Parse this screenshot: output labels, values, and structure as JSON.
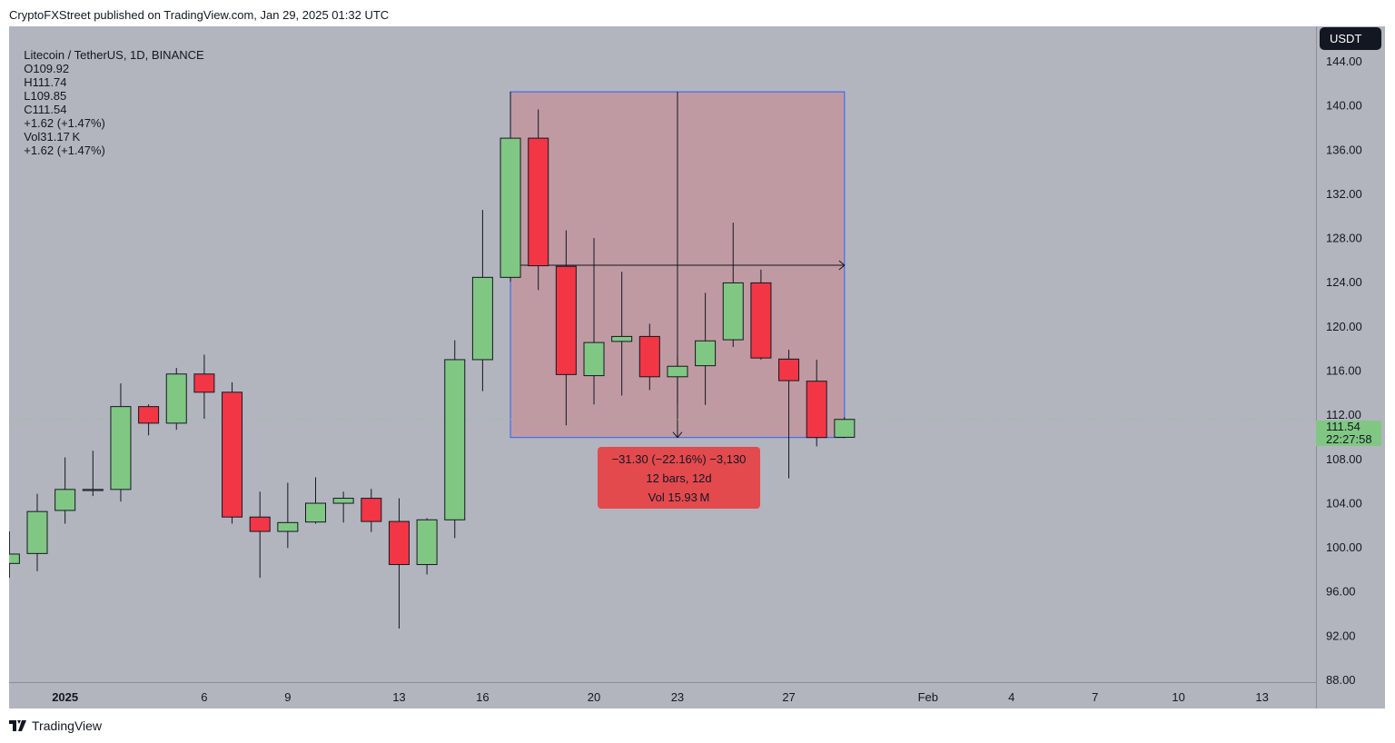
{
  "published": "CryptoFXStreet published on TradingView.com, Jan 29, 2025 01:32 UTC",
  "legend": {
    "symbol": "Litecoin / TetherUS, 1D, BINANCE",
    "open": "O109.92",
    "high": "H111.74",
    "low": "L109.85",
    "close": "C111.54",
    "change": "+1.62 (+1.47%)",
    "volume": "Vol31.17 K",
    "vol_change": "+1.62 (+1.47%)"
  },
  "currency_button": "USDT",
  "last_price": {
    "value": "111.54",
    "countdown": "22:27:58"
  },
  "measurement": {
    "line1": "−31.30 (−22.16%) −3,130",
    "line2": "12 bars, 12d",
    "line3": "Vol 15.93 M",
    "from_date": "2025-01-17",
    "to_date": "2025-01-29",
    "from_price": 141.2,
    "to_price": 109.9,
    "mid_price": 125.5
  },
  "footer_logo": "TradingView",
  "colors": {
    "up": "#81c784",
    "down": "#f23645",
    "background": "#b2b5be",
    "measure_fill": "#c09aa2",
    "measure_border": "#2962ff",
    "measure_label": "#e34a4e"
  },
  "chart_data": {
    "type": "candlestick",
    "title": "Litecoin / TetherUS, 1D, BINANCE",
    "ylim": [
      88,
      144
    ],
    "y_ticks": [
      "144.00",
      "140.00",
      "136.00",
      "132.00",
      "128.00",
      "124.00",
      "120.00",
      "116.00",
      "112.00",
      "108.00",
      "104.00",
      "100.00",
      "96.00",
      "92.00",
      "88.00"
    ],
    "x_ticks": [
      {
        "date": "2025-01-01",
        "label": "2025",
        "bold": true
      },
      {
        "date": "2025-01-06",
        "label": "6"
      },
      {
        "date": "2025-01-09",
        "label": "9"
      },
      {
        "date": "2025-01-13",
        "label": "13"
      },
      {
        "date": "2025-01-16",
        "label": "16"
      },
      {
        "date": "2025-01-20",
        "label": "20"
      },
      {
        "date": "2025-01-23",
        "label": "23"
      },
      {
        "date": "2025-01-27",
        "label": "27"
      },
      {
        "date": "2025-02-01",
        "label": "Feb"
      },
      {
        "date": "2025-02-04",
        "label": "4"
      },
      {
        "date": "2025-02-07",
        "label": "7"
      },
      {
        "date": "2025-02-10",
        "label": "10"
      },
      {
        "date": "2025-02-13",
        "label": "13"
      }
    ],
    "columns": [
      "date",
      "open",
      "high",
      "low",
      "close"
    ],
    "candles": [
      [
        "2024-12-30",
        98.5,
        101.4,
        97.2,
        99.35
      ],
      [
        "2024-12-31",
        99.4,
        104.8,
        97.8,
        103.2
      ],
      [
        "2025-01-01",
        103.3,
        108.1,
        102.1,
        105.2
      ],
      [
        "2025-01-02",
        105.1,
        108.7,
        104.6,
        105.2
      ],
      [
        "2025-01-03",
        105.2,
        114.8,
        104.1,
        112.7
      ],
      [
        "2025-01-04",
        112.7,
        112.9,
        110.1,
        111.2
      ],
      [
        "2025-01-05",
        111.2,
        116.2,
        110.6,
        115.65
      ],
      [
        "2025-01-06",
        115.65,
        117.4,
        111.6,
        114.0
      ],
      [
        "2025-01-07",
        114.0,
        114.9,
        102.1,
        102.7
      ],
      [
        "2025-01-08",
        102.7,
        105.0,
        97.2,
        101.4
      ],
      [
        "2025-01-09",
        101.4,
        105.8,
        99.9,
        102.2
      ],
      [
        "2025-01-10",
        102.25,
        106.3,
        102.1,
        103.95
      ],
      [
        "2025-01-11",
        103.95,
        105.0,
        102.2,
        104.4
      ],
      [
        "2025-01-12",
        104.4,
        105.25,
        101.35,
        102.3
      ],
      [
        "2025-01-13",
        102.3,
        104.4,
        92.6,
        98.4
      ],
      [
        "2025-01-14",
        98.4,
        102.6,
        97.5,
        102.45
      ],
      [
        "2025-01-15",
        102.45,
        118.7,
        100.8,
        116.95
      ],
      [
        "2025-01-16",
        116.95,
        130.5,
        114.1,
        124.4
      ],
      [
        "2025-01-17",
        124.4,
        141.2,
        124.0,
        137.0
      ],
      [
        "2025-01-18",
        137.0,
        139.6,
        123.25,
        125.45
      ],
      [
        "2025-01-19",
        125.4,
        128.65,
        111.0,
        115.6
      ],
      [
        "2025-01-20",
        115.5,
        127.95,
        112.9,
        118.5
      ],
      [
        "2025-01-21",
        118.6,
        124.9,
        113.7,
        119.05
      ],
      [
        "2025-01-22",
        119.05,
        120.2,
        114.2,
        115.4
      ],
      [
        "2025-01-23",
        115.4,
        117.2,
        113.0,
        116.35
      ],
      [
        "2025-01-24",
        116.4,
        123.0,
        112.85,
        118.65
      ],
      [
        "2025-01-25",
        118.75,
        129.35,
        118.1,
        123.9
      ],
      [
        "2025-01-26",
        123.9,
        125.1,
        116.95,
        117.1
      ],
      [
        "2025-01-27",
        117.0,
        117.85,
        106.2,
        115.05
      ],
      [
        "2025-01-28",
        115.0,
        116.95,
        109.1,
        109.9
      ],
      [
        "2025-01-29",
        109.92,
        111.74,
        109.85,
        111.54
      ]
    ]
  }
}
